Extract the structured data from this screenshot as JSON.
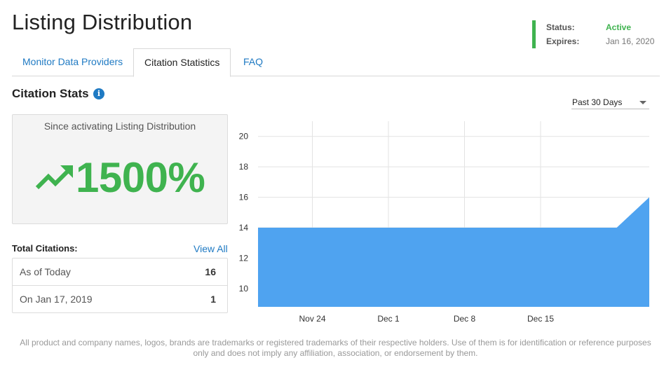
{
  "header": {
    "title": "Listing Distribution",
    "status": {
      "status_label": "Status:",
      "status_value": "Active",
      "expires_label": "Expires:",
      "expires_value": "Jan 16, 2020",
      "accent_color": "#3fb34f"
    }
  },
  "tabs": [
    {
      "label": "Monitor Data Providers",
      "active": false
    },
    {
      "label": "Citation Statistics",
      "active": true
    },
    {
      "label": "FAQ",
      "active": false
    }
  ],
  "section": {
    "title": "Citation Stats",
    "info_icon": "info-icon",
    "range_select": {
      "value": "Past 30 Days"
    }
  },
  "stat_box": {
    "caption": "Since activating Listing Distribution",
    "value": "1500%",
    "icon": "trending-up-icon",
    "color": "#3fb34f"
  },
  "totals": {
    "title": "Total Citations:",
    "view_all": "View All",
    "rows": [
      {
        "label": "As of Today",
        "value": "16"
      },
      {
        "label": "On Jan 17, 2019",
        "value": "1"
      }
    ]
  },
  "chart_data": {
    "type": "area",
    "x_ticks": [
      "Nov 24",
      "Dec 1",
      "Dec 8",
      "Dec 15"
    ],
    "y_ticks": [
      10,
      12,
      14,
      16,
      18,
      20
    ],
    "ylim": [
      8.8,
      21
    ],
    "x": [
      "Nov 19",
      "Dec 22",
      "Dec 25"
    ],
    "values": [
      14,
      14,
      16
    ],
    "fill_color": "#4fa3f0",
    "grid": true
  },
  "footer": {
    "text": "All product and company names, logos, brands are trademarks or registered trademarks of their respective holders. Use of them is for identification or reference purposes only and does not imply any affiliation, association, or endorsement by them."
  }
}
